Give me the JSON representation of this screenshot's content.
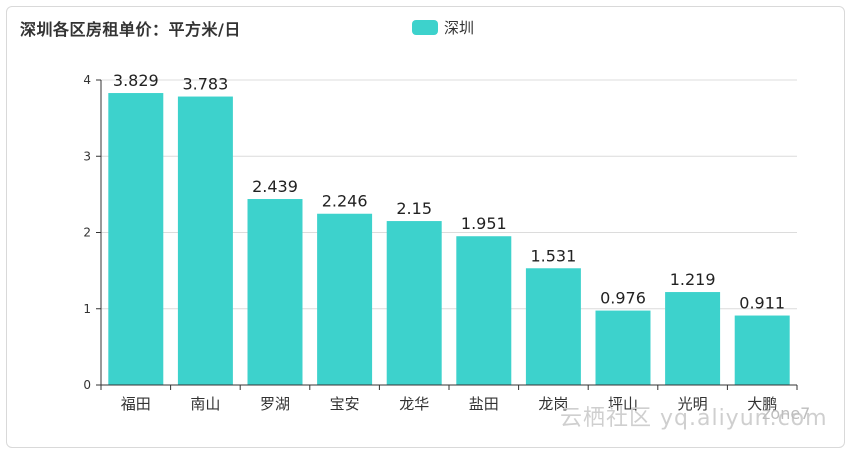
{
  "title": "深圳各区房租单价：平方米/日",
  "legend": {
    "label": "深圳",
    "color": "#3dd2cc"
  },
  "watermark": {
    "text": "云栖社区 yq.aliyun.com",
    "sub": "zone7"
  },
  "chart_data": {
    "type": "bar",
    "title": "深圳各区房租单价：平方米/日",
    "categories": [
      "福田",
      "南山",
      "罗湖",
      "宝安",
      "龙华",
      "盐田",
      "龙岗",
      "坪山",
      "光明",
      "大鹏"
    ],
    "series": [
      {
        "name": "深圳",
        "values": [
          3.829,
          3.783,
          2.439,
          2.246,
          2.15,
          1.951,
          1.531,
          0.976,
          1.219,
          0.911
        ]
      }
    ],
    "value_labels": [
      "3.829",
      "3.783",
      "2.439",
      "2.246",
      "2.15",
      "1.951",
      "1.531",
      "0.976",
      "1.219",
      "0.911"
    ],
    "y_ticks": [
      "0",
      "1",
      "2",
      "3",
      "4"
    ],
    "ylim": [
      0,
      4
    ],
    "grid": true,
    "legend_position": "top-center",
    "bar_color": "#3dd2cc"
  }
}
